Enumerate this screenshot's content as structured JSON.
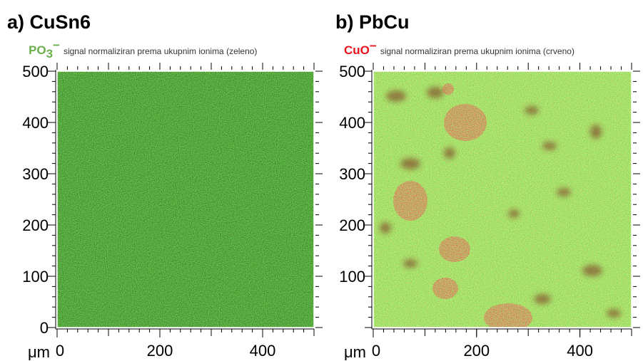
{
  "panels": [
    {
      "title": "a) CuSn6",
      "ion": "PO",
      "ion_subscript": "3",
      "ion_superscript": "−",
      "ion_color": "#6ab04c",
      "signal_text": "signal normaliziran prema ukupnim ionima (zeleno)",
      "unit": "μm",
      "xlim": [
        0,
        500
      ],
      "ylim": [
        0,
        500
      ],
      "xticks": [
        0,
        200,
        400
      ],
      "yticks": [
        0,
        100,
        200,
        300,
        400,
        500
      ]
    },
    {
      "title": "b) PbCu",
      "ion": "CuO",
      "ion_superscript": "−",
      "ion_color": "#e8141c",
      "signal_text": "signal normaliziran prema ukupnim ionima (crveno)",
      "unit": "μm",
      "xlim": [
        0,
        500
      ],
      "ylim": [
        0,
        500
      ],
      "xticks": [
        0,
        200,
        400
      ],
      "yticks": [
        100,
        200,
        300,
        400,
        500
      ]
    }
  ]
}
